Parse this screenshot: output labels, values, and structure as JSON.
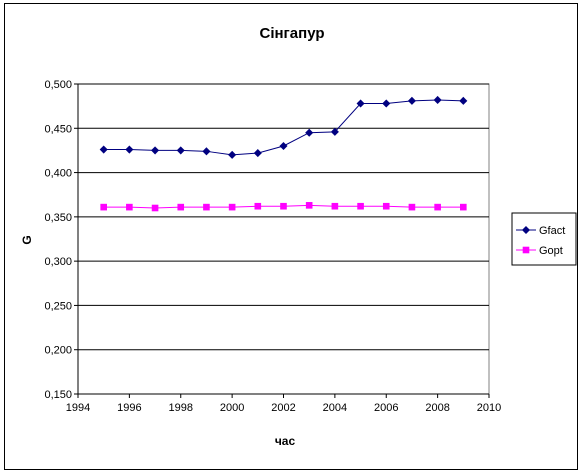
{
  "chart_data": {
    "type": "line",
    "title": "Сінгапур",
    "xlabel": "час",
    "ylabel": "G",
    "xlim": [
      1994,
      2010
    ],
    "ylim": [
      0.15,
      0.5
    ],
    "x_ticks": [
      "1994",
      "1996",
      "1998",
      "2000",
      "2002",
      "2004",
      "2006",
      "2008",
      "2010"
    ],
    "y_ticks": [
      "0,150",
      "0,200",
      "0,250",
      "0,300",
      "0,350",
      "0,400",
      "0,450",
      "0,500"
    ],
    "grid": "horizontal",
    "legend_position": "right",
    "x": [
      1995,
      1996,
      1997,
      1998,
      1999,
      2000,
      2001,
      2002,
      2003,
      2004,
      2005,
      2006,
      2007,
      2008,
      2009
    ],
    "series": [
      {
        "name": "Gfact",
        "color": "#000080",
        "marker": "diamond",
        "values": [
          0.426,
          0.426,
          0.425,
          0.425,
          0.424,
          0.42,
          0.422,
          0.43,
          0.445,
          0.446,
          0.478,
          0.478,
          0.481,
          0.482,
          0.481
        ]
      },
      {
        "name": "Gopt",
        "color": "#FF00FF",
        "marker": "square",
        "values": [
          0.361,
          0.361,
          0.36,
          0.361,
          0.361,
          0.361,
          0.362,
          0.362,
          0.363,
          0.362,
          0.362,
          0.362,
          0.361,
          0.361,
          0.361
        ]
      }
    ]
  }
}
